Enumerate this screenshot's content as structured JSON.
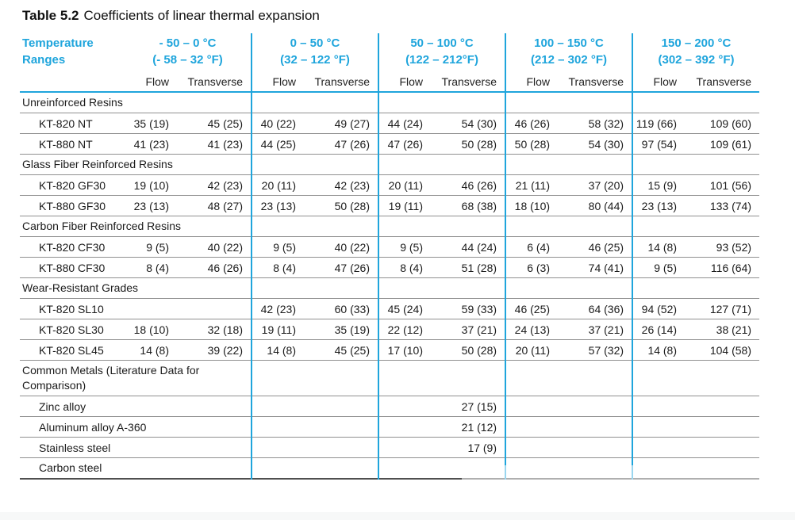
{
  "title": {
    "label": "Table 5.2",
    "text": "Coefficients of linear thermal expansion"
  },
  "colors": {
    "accent": "#1fa5dc",
    "rule_gray": "#909090",
    "bottom_border": "#4f4f4f",
    "text": "#1b1b1b"
  },
  "header": {
    "row_label_line1": "Temperature",
    "row_label_line2": "Ranges",
    "sub_columns": [
      "Flow",
      "Transverse"
    ],
    "ranges": [
      {
        "celsius": "- 50 – 0 °C",
        "fahrenheit": "(- 58 – 32 °F)"
      },
      {
        "celsius": "0 – 50 °C",
        "fahrenheit": "(32 – 122 °F)"
      },
      {
        "celsius": "50 – 100 °C",
        "fahrenheit": "(122 – 212°F)"
      },
      {
        "celsius": "100 – 150 °C",
        "fahrenheit": "(212 – 302 °F)"
      },
      {
        "celsius": "150 – 200 °C",
        "fahrenheit": "(302 – 392 °F)"
      }
    ]
  },
  "groups": [
    {
      "label": "Unreinforced Resins",
      "rows": [
        {
          "name": "KT-820 NT",
          "values": [
            "35 (19)",
            "45 (25)",
            "40 (22)",
            "49 (27)",
            "44 (24)",
            "54 (30)",
            "46 (26)",
            "58 (32)",
            "119 (66)",
            "109 (60)"
          ]
        },
        {
          "name": "KT-880 NT",
          "values": [
            "41 (23)",
            "41 (23)",
            "44 (25)",
            "47 (26)",
            "47 (26)",
            "50 (28)",
            "50 (28)",
            "54 (30)",
            "97 (54)",
            "109 (61)"
          ]
        }
      ]
    },
    {
      "label": "Glass Fiber Reinforced Resins",
      "rows": [
        {
          "name": "KT-820 GF30",
          "values": [
            "19 (10)",
            "42 (23)",
            "20 (11)",
            "42 (23)",
            "20 (11)",
            "46 (26)",
            "21 (11)",
            "37 (20)",
            "15 (9)",
            "101 (56)"
          ]
        },
        {
          "name": "KT-880 GF30",
          "values": [
            "23 (13)",
            "48 (27)",
            "23 (13)",
            "50 (28)",
            "19 (11)",
            "68 (38)",
            "18 (10)",
            "80 (44)",
            "23 (13)",
            "133 (74)"
          ]
        }
      ]
    },
    {
      "label": "Carbon Fiber Reinforced Resins",
      "rows": [
        {
          "name": "KT-820 CF30",
          "values": [
            "9 (5)",
            "40 (22)",
            "9 (5)",
            "40 (22)",
            "9 (5)",
            "44 (24)",
            "6 (4)",
            "46 (25)",
            "14 (8)",
            "93 (52)"
          ]
        },
        {
          "name": "KT-880 CF30",
          "values": [
            "8 (4)",
            "46 (26)",
            "8 (4)",
            "47 (26)",
            "8 (4)",
            "51 (28)",
            "6 (3)",
            "74 (41)",
            "9 (5)",
            "116 (64)"
          ]
        }
      ]
    },
    {
      "label": "Wear-Resistant Grades",
      "rows": [
        {
          "name": "KT-820 SL10",
          "values": [
            "",
            "",
            "42 (23)",
            "60 (33)",
            "45 (24)",
            "59 (33)",
            "46 (25)",
            "64 (36)",
            "94 (52)",
            "127 (71)"
          ]
        },
        {
          "name": "KT-820 SL30",
          "values": [
            "18 (10)",
            "32 (18)",
            "19 (11)",
            "35 (19)",
            "22 (12)",
            "37 (21)",
            "24 (13)",
            "37 (21)",
            "26 (14)",
            "38 (21)"
          ]
        },
        {
          "name": "KT-820 SL45",
          "values": [
            "14 (8)",
            "39 (22)",
            "14 (8)",
            "45 (25)",
            "17 (10)",
            "50 (28)",
            "20 (11)",
            "57 (32)",
            "14 (8)",
            "104 (58)"
          ]
        }
      ]
    },
    {
      "label": "Common Metals (Literature Data for Comparison)",
      "rows": [
        {
          "name": "Zinc alloy",
          "values": [
            "",
            "",
            "",
            "",
            "",
            "27 (15)",
            "",
            "",
            "",
            ""
          ]
        },
        {
          "name": "Aluminum alloy A-360",
          "values": [
            "",
            "",
            "",
            "",
            "",
            "21 (12)",
            "",
            "",
            "",
            ""
          ]
        },
        {
          "name": "Stainless steel",
          "values": [
            "",
            "",
            "",
            "",
            "",
            "17 (9)",
            "",
            "",
            "",
            ""
          ]
        },
        {
          "name": "Carbon steel",
          "values": [
            "",
            "",
            "",
            "",
            "",
            "",
            "",
            "",
            "",
            ""
          ]
        }
      ]
    }
  ]
}
